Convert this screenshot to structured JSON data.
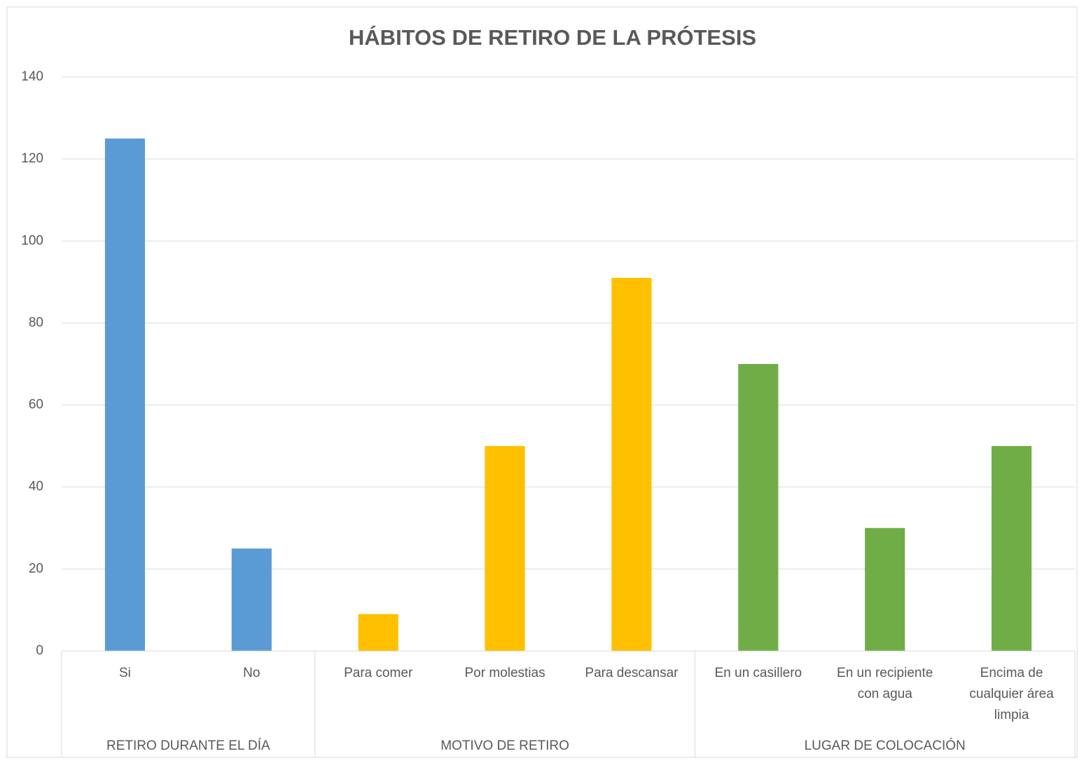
{
  "chart_data": {
    "type": "bar",
    "title": "HÁBITOS DE RETIRO DE LA PRÓTESIS",
    "groups": [
      {
        "name": "RETIRO DURANTE EL DÍA",
        "color": "#5b9bd5",
        "categories": [
          "Si",
          "No"
        ],
        "values": [
          125,
          25
        ]
      },
      {
        "name": "MOTIVO DE RETIRO",
        "color": "#ffc000",
        "categories": [
          "Para comer",
          "Por molestias",
          "Para descansar"
        ],
        "values": [
          9,
          50,
          91
        ]
      },
      {
        "name": "LUGAR DE COLOCACIÓN",
        "color": "#70ad47",
        "categories": [
          "En un casillero",
          "En un recipiente con agua",
          "Encima de cualquier área limpia"
        ],
        "values": [
          70,
          30,
          50
        ]
      }
    ],
    "ylim": [
      0,
      140
    ],
    "yticks": [
      0,
      20,
      40,
      60,
      80,
      100,
      120,
      140
    ],
    "grid": true
  }
}
